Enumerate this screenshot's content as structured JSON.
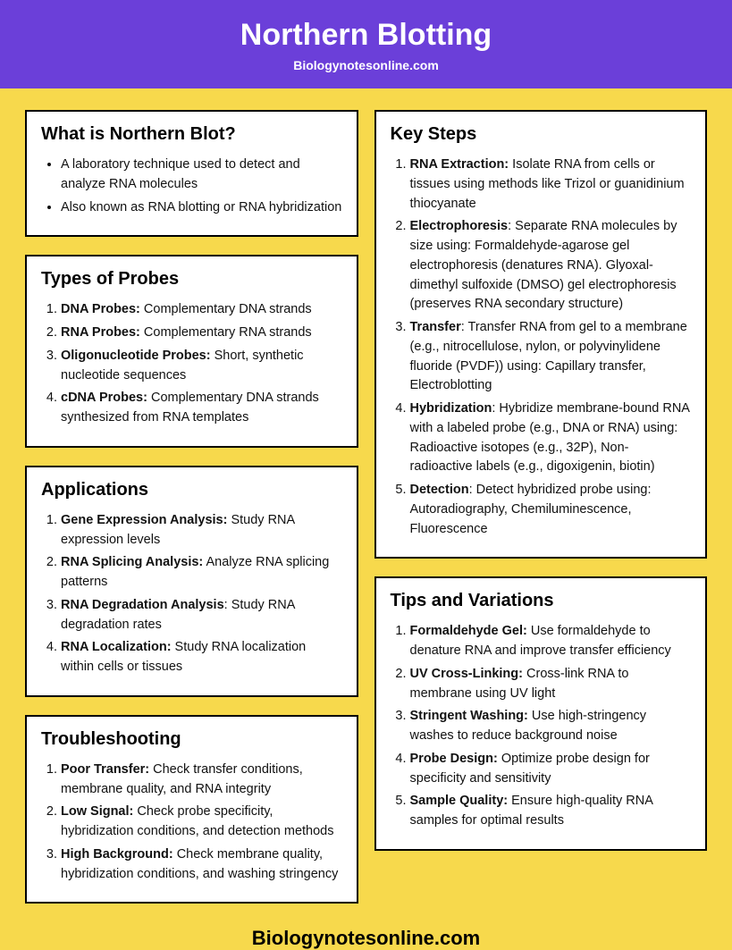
{
  "header": {
    "title": "Northern Blotting",
    "subtitle": "Biologynotesonline.com"
  },
  "colors": {
    "header_bg": "#6b3fd9",
    "page_bg": "#f7d94c",
    "card_bg": "#ffffff",
    "card_border": "#000000",
    "text": "#000000"
  },
  "footer": "Biologynotesonline.com",
  "sections": {
    "what": {
      "title": "What is Northern Blot?",
      "type": "ul",
      "items": [
        {
          "b": "",
          "t": "A laboratory technique used to detect and analyze RNA molecules"
        },
        {
          "b": "",
          "t": "Also known as RNA blotting or RNA hybridization"
        }
      ]
    },
    "probes": {
      "title": "Types of Probes",
      "type": "ol",
      "items": [
        {
          "b": "DNA Probes:",
          "t": " Complementary DNA strands"
        },
        {
          "b": "RNA Probes:",
          "t": " Complementary RNA strands"
        },
        {
          "b": "Oligonucleotide Probes:",
          "t": " Short, synthetic nucleotide sequences"
        },
        {
          "b": "cDNA Probes:",
          "t": " Complementary DNA strands synthesized from RNA templates"
        }
      ]
    },
    "apps": {
      "title": "Applications",
      "type": "ol",
      "items": [
        {
          "b": "Gene Expression Analysis:",
          "t": " Study RNA expression levels"
        },
        {
          "b": "RNA Splicing Analysis:",
          "t": " Analyze RNA splicing patterns"
        },
        {
          "b": "RNA Degradation Analysis",
          "t": ": Study RNA degradation rates"
        },
        {
          "b": "RNA Localization:",
          "t": " Study RNA localization within cells or tissues"
        }
      ]
    },
    "trouble": {
      "title": "Troubleshooting",
      "type": "ol",
      "items": [
        {
          "b": "Poor Transfer:",
          "t": " Check transfer conditions, membrane quality, and RNA integrity"
        },
        {
          "b": "Low Signal:",
          "t": " Check probe specificity, hybridization conditions, and detection methods"
        },
        {
          "b": "High Background:",
          "t": " Check membrane quality, hybridization conditions, and washing stringency"
        }
      ]
    },
    "steps": {
      "title": "Key Steps",
      "type": "ol",
      "items": [
        {
          "b": "RNA Extraction:",
          "t": " Isolate RNA from cells or tissues using methods like Trizol or guanidinium thiocyanate"
        },
        {
          "b": "Electrophoresis",
          "t": ": Separate RNA molecules by size using: Formaldehyde-agarose gel electrophoresis (denatures RNA). Glyoxal-dimethyl sulfoxide (DMSO) gel electrophoresis (preserves RNA secondary structure)"
        },
        {
          "b": "Transfer",
          "t": ": Transfer RNA from gel to a membrane (e.g., nitrocellulose, nylon, or polyvinylidene fluoride (PVDF)) using: Capillary transfer, Electroblotting"
        },
        {
          "b": "Hybridization",
          "t": ": Hybridize membrane-bound RNA with a labeled probe (e.g., DNA or RNA) using: Radioactive isotopes (e.g., 32P), Non-radioactive labels (e.g., digoxigenin, biotin)"
        },
        {
          "b": "Detection",
          "t": ": Detect hybridized probe using: Autoradiography, Chemiluminescence, Fluorescence"
        }
      ]
    },
    "tips": {
      "title": "Tips and Variations",
      "type": "ol",
      "items": [
        {
          "b": "Formaldehyde Gel:",
          "t": " Use formaldehyde to denature RNA and improve transfer efficiency"
        },
        {
          "b": "UV Cross-Linking:",
          "t": " Cross-link RNA to membrane using UV light"
        },
        {
          "b": "Stringent Washing:",
          "t": " Use high-stringency washes to reduce background noise"
        },
        {
          "b": "Probe Design:",
          "t": " Optimize probe design for specificity and sensitivity"
        },
        {
          "b": "Sample Quality:",
          "t": " Ensure high-quality RNA samples for optimal results"
        }
      ]
    }
  }
}
